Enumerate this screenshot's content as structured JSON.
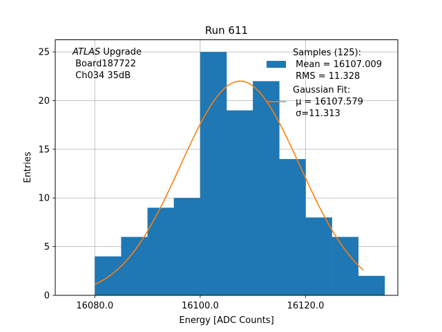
{
  "chart_data": {
    "type": "bar",
    "title": "Run 611",
    "xlabel": "Energy [ADC Counts]",
    "ylabel": "Entries",
    "xlim": [
      16072.5,
      16137.5
    ],
    "ylim": [
      0,
      26.25
    ],
    "x_ticks": [
      16080.0,
      16100.0,
      16120.0
    ],
    "x_tick_labels": [
      "16080.0",
      "16100.0",
      "16120.0"
    ],
    "y_ticks": [
      0,
      5,
      10,
      15,
      20,
      25
    ],
    "y_tick_labels": [
      "0",
      "5",
      "10",
      "15",
      "20",
      "25"
    ],
    "grid": true,
    "histogram": {
      "color": "#1f77b4",
      "bin_edges": [
        16080,
        16085,
        16090,
        16095,
        16100,
        16105,
        16110,
        16115,
        16120,
        16125,
        16130,
        16135
      ],
      "counts": [
        4,
        6,
        9,
        10,
        25,
        19,
        22,
        14,
        8,
        6,
        2
      ]
    },
    "fit": {
      "color": "#ff7f0e",
      "mu": 16107.579,
      "sigma": 11.313,
      "peak": 22,
      "x_range": [
        16080,
        16131
      ]
    },
    "annotation_lines": [
      "ATLAS Upgrade",
      " Board187722",
      " Ch034 35dB"
    ],
    "legend": {
      "placement": "top-right",
      "samples_title": "Samples (125):",
      "samples_mean": " Mean = 16107.009",
      "samples_rms": " RMS = 11.328",
      "fit_title": "Gaussian Fit:",
      "fit_mu": " μ = 16107.579",
      "fit_sigma": " σ=11.313"
    }
  }
}
